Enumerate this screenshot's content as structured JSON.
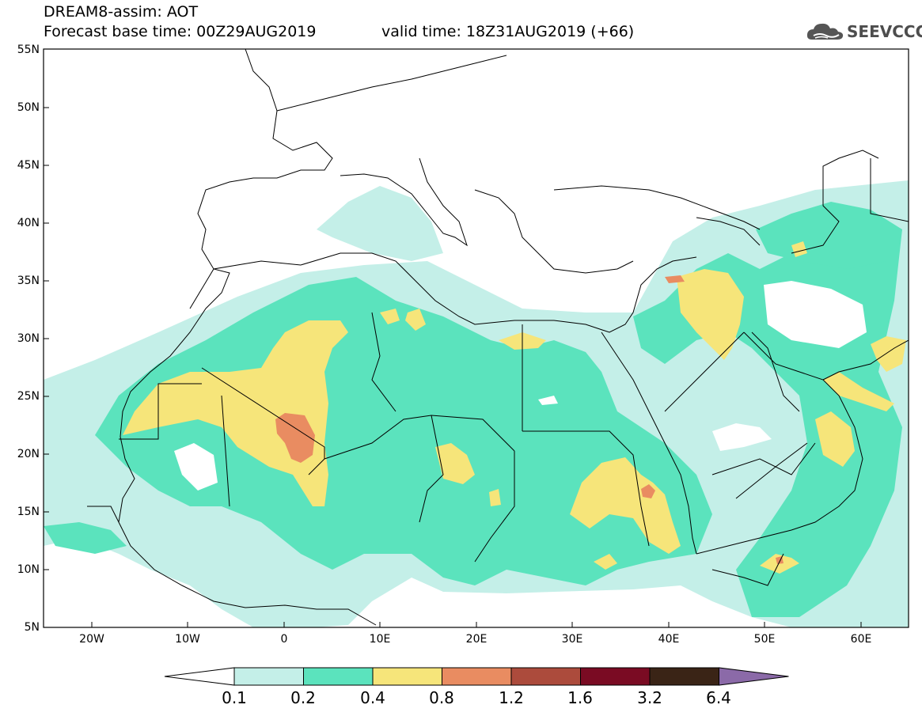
{
  "header": {
    "title": "DREAM8-assim: AOT",
    "base_time": "Forecast base time: 00Z29AUG2019",
    "valid_time": "valid time: 18Z31AUG2019 (+66)"
  },
  "logo": {
    "text": "SEEVCCC",
    "icon": "cloud-icon"
  },
  "map": {
    "lat_labels": [
      "55N",
      "50N",
      "45N",
      "40N",
      "35N",
      "30N",
      "25N",
      "20N",
      "15N",
      "10N",
      "5N"
    ],
    "lon_labels": [
      "20W",
      "10W",
      "0",
      "10E",
      "20E",
      "30E",
      "40E",
      "50E",
      "60E"
    ]
  },
  "colorbar": {
    "labels": [
      "0.1",
      "0.2",
      "0.4",
      "0.8",
      "1.2",
      "1.6",
      "3.2",
      "6.4"
    ],
    "colors": [
      "#ffffff",
      "#c4efe8",
      "#5be3bd",
      "#f6e57a",
      "#e98c61",
      "#ac4b3c",
      "#7a0b23",
      "#3a2416",
      "#8b6aa8"
    ]
  }
}
